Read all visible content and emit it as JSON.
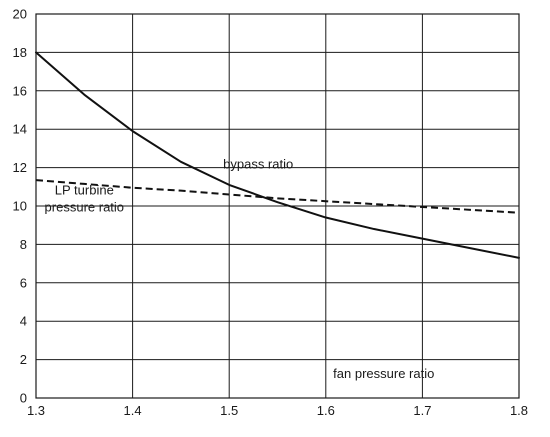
{
  "chart_data": {
    "type": "line",
    "title": "",
    "xlabel": "fan pressure ratio",
    "ylabel": "",
    "xlim": [
      1.3,
      1.8
    ],
    "ylim": [
      0,
      20
    ],
    "x_ticks": [
      1.3,
      1.4,
      1.5,
      1.6,
      1.7,
      1.8
    ],
    "x_tick_labels": [
      "1.3",
      "1.4",
      "1.5",
      "1.6",
      "1.7",
      "1.8"
    ],
    "y_ticks": [
      0,
      2,
      4,
      6,
      8,
      10,
      12,
      14,
      16,
      18,
      20
    ],
    "y_tick_labels": [
      "0",
      "2",
      "4",
      "6",
      "8",
      "10",
      "12",
      "14",
      "16",
      "18",
      "20"
    ],
    "grid": true,
    "series": [
      {
        "name": "bypass ratio",
        "line_style": "solid",
        "color": "#111111",
        "x": [
          1.3,
          1.35,
          1.4,
          1.45,
          1.5,
          1.55,
          1.6,
          1.65,
          1.7,
          1.75,
          1.8
        ],
        "y": [
          18.0,
          15.8,
          13.9,
          12.3,
          11.1,
          10.2,
          9.4,
          8.8,
          8.3,
          7.8,
          7.3
        ]
      },
      {
        "name": "LP turbine pressure ratio",
        "line_style": "dashed",
        "color": "#111111",
        "x": [
          1.3,
          1.35,
          1.4,
          1.45,
          1.5,
          1.55,
          1.6,
          1.65,
          1.7,
          1.75,
          1.8
        ],
        "y": [
          11.35,
          11.15,
          10.95,
          10.8,
          10.6,
          10.4,
          10.25,
          10.1,
          9.95,
          9.8,
          9.65
        ]
      }
    ],
    "annotations": [
      {
        "id": "bypass",
        "lines": [
          "bypass ratio"
        ],
        "x": 1.53,
        "y": 11.95
      },
      {
        "id": "lpt",
        "lines": [
          "LP turbine",
          "pressure ratio"
        ],
        "x": 1.35,
        "y": 10.6
      },
      {
        "id": "fpr",
        "lines": [
          "fan pressure ratio"
        ],
        "x": 1.66,
        "y": 1.05
      }
    ]
  }
}
